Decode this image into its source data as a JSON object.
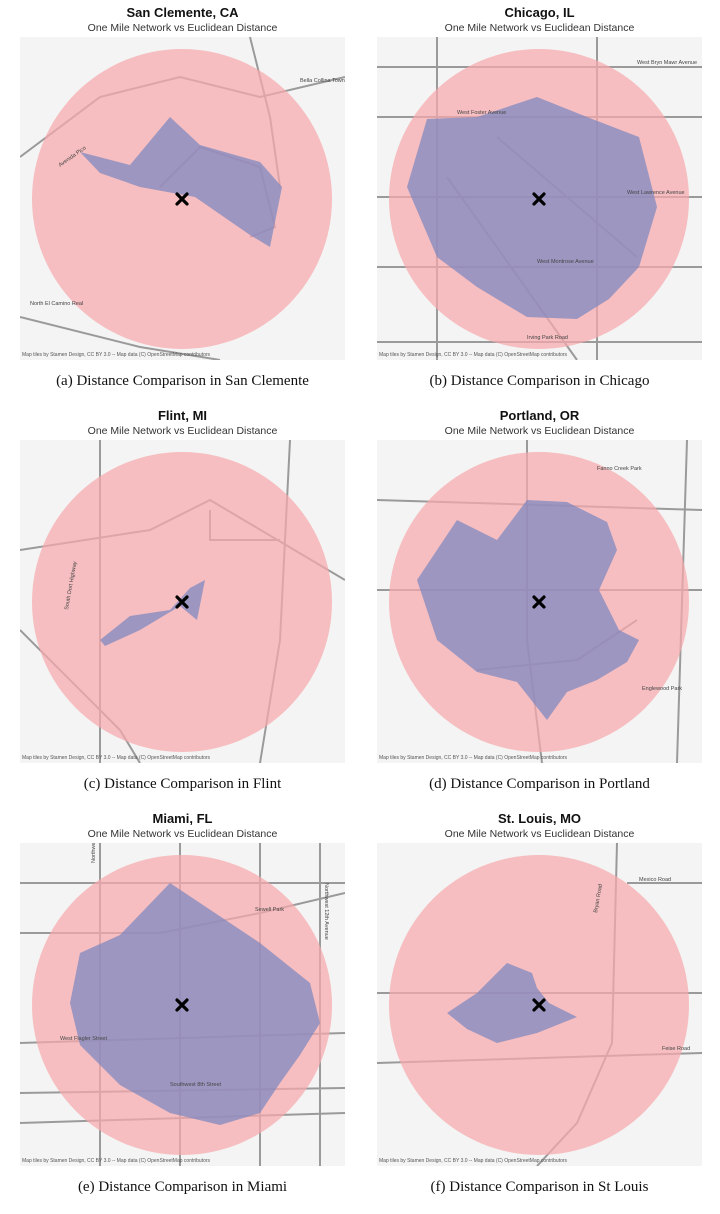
{
  "panels": [
    {
      "title": "San Clemente, CA",
      "subtitle": "One Mile Network vs Euclidean Distance",
      "caption": "(a) Distance Comparison in San Clemente",
      "attribution": "Map tiles by Stamen Design, CC BY 3.0 -- Map data (C) OpenStreetMap contributors",
      "labels": [
        "Avenida Pico",
        "North El Camino Real",
        "Bella Collina Towne & Golf Club"
      ]
    },
    {
      "title": "Chicago, IL",
      "subtitle": "One Mile Network vs Euclidean Distance",
      "caption": "(b) Distance Comparison in Chicago",
      "attribution": "Map tiles by Stamen Design, CC BY 3.0 -- Map data (C) OpenStreetMap contributors",
      "labels": [
        "West Bryn Mawr Avenue",
        "West Foster Avenue",
        "West Lawrence Avenue",
        "West Montrose Avenue",
        "Irving Park Road"
      ]
    },
    {
      "title": "Flint, MI",
      "subtitle": "One Mile Network vs Euclidean Distance",
      "caption": "(c) Distance Comparison in Flint",
      "attribution": "Map tiles by Stamen Design, CC BY 3.0 -- Map data (C) OpenStreetMap contributors",
      "labels": [
        "South Dort Highway"
      ]
    },
    {
      "title": "Portland, OR",
      "subtitle": "One Mile Network vs Euclidean Distance",
      "caption": "(d) Distance Comparison in Portland",
      "attribution": "Map tiles by Stamen Design, CC BY 3.0 -- Map data (C) OpenStreetMap contributors",
      "labels": [
        "Fanno Creek Park",
        "Englewood Park"
      ]
    },
    {
      "title": "Miami, FL",
      "subtitle": "One Mile Network vs Euclidean Distance",
      "caption": "(e) Distance Comparison in Miami",
      "attribution": "Map tiles by Stamen Design, CC BY 3.0 -- Map data (C) OpenStreetMap contributors",
      "labels": [
        "Sewell Park",
        "West Flagler Street",
        "Southwest 8th Street",
        "Northwest 27th Avenue",
        "Northwest 12th Avenue"
      ]
    },
    {
      "title": "St. Louis, MO",
      "subtitle": "One Mile Network vs Euclidean Distance",
      "caption": "(f) Distance Comparison in St Louis",
      "attribution": "Map tiles by Stamen Design, CC BY 3.0 -- Map data (C) OpenStreetMap contributors",
      "labels": [
        "Mexico Road",
        "Bryan Road",
        "Feise Road"
      ]
    }
  ]
}
